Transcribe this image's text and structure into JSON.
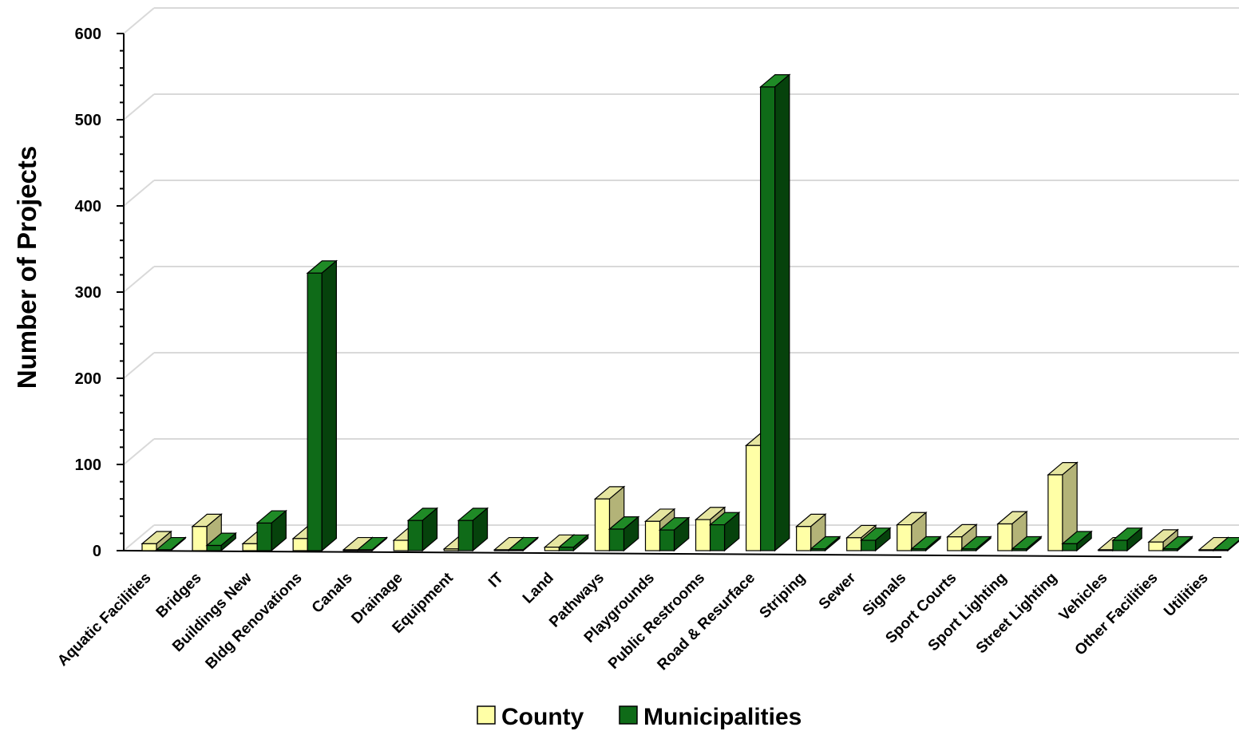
{
  "chart_data": {
    "type": "bar",
    "title": "",
    "xlabel": "",
    "ylabel": "Number of Projects",
    "ylim": [
      0,
      600
    ],
    "yticks": [
      0,
      100,
      200,
      300,
      400,
      500,
      600
    ],
    "grid": true,
    "legend_position": "bottom",
    "categories": [
      "Aquatic Facilities",
      "Bridges",
      "Buildings New",
      "Bldg Renovations",
      "Canals",
      "Drainage",
      "Equipment",
      "IT",
      "Land",
      "Pathways",
      "Playgrounds",
      "Public Restrooms",
      "Road & Resurface",
      "Striping",
      "Sewer",
      "Signals",
      "Sport Courts",
      "Sport Lighting",
      "Street Lighting",
      "Vehicles",
      "Other Facilities",
      "Utilities"
    ],
    "series": [
      {
        "name": "County",
        "color": "#ffffa6",
        "top_color": "#e6e6a0",
        "side_color": "#b3b378",
        "values": [
          8,
          28,
          8,
          14,
          1,
          12,
          2,
          1,
          4,
          60,
          34,
          36,
          122,
          28,
          15,
          30,
          16,
          31,
          88,
          1,
          10,
          1
        ]
      },
      {
        "name": "Municipalities",
        "color": "#0f6b18",
        "top_color": "#1f8a26",
        "side_color": "#06420c",
        "values": [
          1,
          6,
          32,
          322,
          1,
          35,
          35,
          1,
          4,
          25,
          24,
          30,
          538,
          2,
          12,
          2,
          2,
          2,
          8,
          12,
          2,
          1
        ]
      }
    ]
  }
}
